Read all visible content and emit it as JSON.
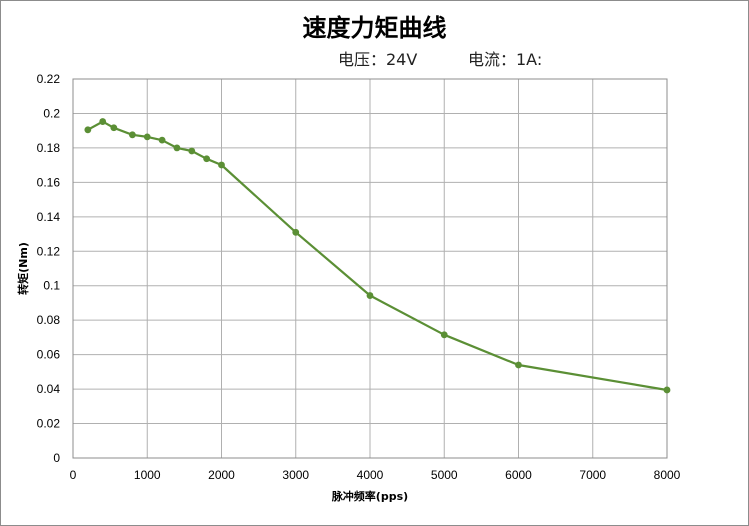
{
  "chart_data": {
    "type": "line",
    "title": "速度力矩曲线",
    "subtitles": [
      "电压：24V",
      "电流：1A:"
    ],
    "xlabel": "脉冲频率(pps)",
    "ylabel": "转矩(Nm)",
    "xlim": [
      0,
      8000
    ],
    "ylim": [
      0,
      0.22
    ],
    "xticks": [
      0,
      1000,
      2000,
      3000,
      4000,
      5000,
      6000,
      7000,
      8000
    ],
    "yticks": [
      0,
      0.02,
      0.04,
      0.06,
      0.08,
      0.1,
      0.12,
      0.14,
      0.16,
      0.18,
      0.2,
      0.22
    ],
    "ytick_labels": [
      "0",
      "0.02",
      "0.04",
      "0.06",
      "0.08",
      "0.1",
      "0.12",
      "0.14",
      "0.16",
      "0.18",
      "0.2",
      "0.22"
    ],
    "grid": true,
    "series": [
      {
        "color": "#5b8f35",
        "x": [
          200,
          400,
          550,
          800,
          1000,
          1200,
          1400,
          1600,
          1800,
          2000,
          3000,
          4000,
          5000,
          6000,
          8000
        ],
        "y": [
          0.1905,
          0.1953,
          0.1917,
          0.1876,
          0.1864,
          0.1845,
          0.18,
          0.1782,
          0.1737,
          0.1701,
          0.131,
          0.0943,
          0.0715,
          0.054,
          0.0395
        ]
      }
    ]
  }
}
